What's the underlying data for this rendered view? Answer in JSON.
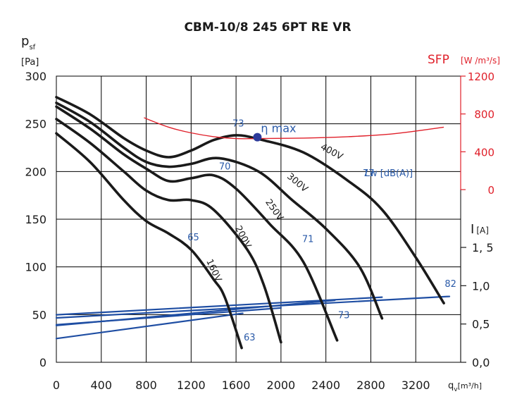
{
  "chart_data": {
    "type": "line",
    "title": "CBM-10/8 245 6PT RE VR",
    "xlabel": {
      "base": "q",
      "sub": "v",
      "unit": "[m³/h]"
    },
    "ylabel": {
      "base": "p",
      "sub": "sf",
      "unit": "[Pa]"
    },
    "sfp_axis": {
      "label": "SFP",
      "unit": "[W /m³/s]",
      "ticks": [
        0,
        400,
        800,
        1200
      ],
      "range": [
        0,
        1200
      ]
    },
    "current_axis": {
      "label": "I",
      "unit": "[A]",
      "ticks": [
        "0,0",
        "0,5",
        "1,0",
        "1, 5"
      ],
      "range": [
        0,
        1.5
      ]
    },
    "x_ticks": [
      "0",
      "400",
      "800",
      "1200",
      "1600",
      "2000",
      "2400",
      "2800",
      "3200"
    ],
    "y_ticks": [
      "0",
      "50",
      "100",
      "150",
      "200",
      "250",
      "300"
    ],
    "xlim": [
      0,
      3600
    ],
    "ylim": [
      0,
      300
    ],
    "pressure_series": [
      {
        "name": "400V",
        "x": [
          0,
          300,
          600,
          800,
          1000,
          1200,
          1400,
          1600,
          1800,
          2200,
          2600,
          2900,
          3200,
          3450
        ],
        "y": [
          278,
          260,
          235,
          222,
          215,
          222,
          233,
          238,
          234,
          220,
          190,
          160,
          110,
          62
        ]
      },
      {
        "name": "300V",
        "x": [
          0,
          300,
          600,
          800,
          1000,
          1200,
          1450,
          1800,
          2100,
          2400,
          2700,
          2900
        ],
        "y": [
          272,
          252,
          225,
          210,
          205,
          208,
          214,
          200,
          170,
          140,
          100,
          46
        ]
      },
      {
        "name": "250V",
        "x": [
          0,
          300,
          600,
          800,
          1000,
          1200,
          1400,
          1600,
          1900,
          2200,
          2500
        ],
        "y": [
          268,
          245,
          218,
          203,
          190,
          193,
          196,
          182,
          145,
          105,
          23
        ]
      },
      {
        "name": "200V",
        "x": [
          0,
          300,
          600,
          800,
          1000,
          1200,
          1400,
          1700,
          1850,
          2000
        ],
        "y": [
          255,
          230,
          200,
          180,
          170,
          170,
          160,
          118,
          80,
          21
        ]
      },
      {
        "name": "160V",
        "x": [
          0,
          300,
          600,
          800,
          1000,
          1200,
          1400,
          1500,
          1650
        ],
        "y": [
          240,
          210,
          170,
          148,
          135,
          118,
          87,
          68,
          15
        ]
      }
    ],
    "current_series": [
      {
        "name": "400V",
        "x": [
          0,
          3500
        ],
        "y": [
          0.58,
          0.86
        ]
      },
      {
        "name": "300V",
        "x": [
          0,
          2900
        ],
        "y": [
          0.62,
          0.85
        ]
      },
      {
        "name": "250V",
        "x": [
          0,
          2480
        ],
        "y": [
          0.48,
          0.81
        ]
      },
      {
        "name": "200V",
        "x": [
          0,
          2000
        ],
        "y": [
          0.49,
          0.71
        ]
      },
      {
        "name": "160V",
        "x": [
          0,
          1660
        ],
        "y": [
          0.31,
          0.64
        ]
      }
    ],
    "sfp_curve": {
      "name": "SFP",
      "x": [
        780,
        1000,
        1200,
        1400,
        1600,
        1800,
        2200,
        2600,
        3000,
        3450
      ],
      "y": [
        760,
        660,
        600,
        560,
        540,
        540,
        545,
        560,
        590,
        660
      ]
    },
    "eta_max": {
      "label": "η max",
      "x": 1790,
      "y": 236
    },
    "annotations": [
      {
        "text": "400V",
        "x": 2440,
        "y": 218,
        "rotate": 28
      },
      {
        "text": "300V",
        "x": 2130,
        "y": 186,
        "rotate": 40
      },
      {
        "text": "250V",
        "x": 1920,
        "y": 158,
        "rotate": 55
      },
      {
        "text": "200V",
        "x": 1640,
        "y": 130,
        "rotate": 62
      },
      {
        "text": "160V",
        "x": 1380,
        "y": 95,
        "rotate": 65
      },
      {
        "text": "Lw [dB(A)]",
        "x": 2960,
        "y": 195,
        "rotate": 0
      },
      {
        "text": "73",
        "x": 1620,
        "y": 247,
        "rotate": 0
      },
      {
        "text": "70",
        "x": 1500,
        "y": 202,
        "rotate": 0
      },
      {
        "text": "77",
        "x": 2780,
        "y": 195,
        "rotate": 0
      },
      {
        "text": "71",
        "x": 2240,
        "y": 126,
        "rotate": 0
      },
      {
        "text": "65",
        "x": 1220,
        "y": 128,
        "rotate": 0
      },
      {
        "text": "82",
        "x": 3510,
        "y": 79,
        "rotate": 0
      },
      {
        "text": "73",
        "x": 2560,
        "y": 46,
        "rotate": 0
      },
      {
        "text": "63",
        "x": 1720,
        "y": 23,
        "rotate": 0
      }
    ],
    "colors": {
      "pressure": "#1a1a1a",
      "current": "#1f4ea3",
      "sfp": "#e0202a",
      "sfp_axis": "#e0202a",
      "label_blue": "#2a5aa8",
      "eta_dot": "#2d3a9a",
      "grid": "#000000"
    }
  }
}
